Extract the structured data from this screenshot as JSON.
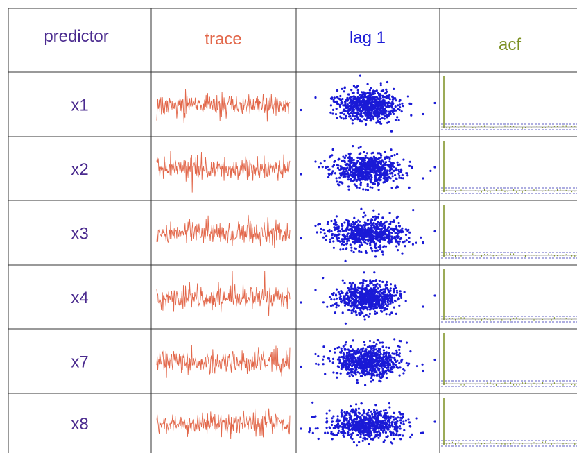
{
  "colors": {
    "predictor": "#4b2b8f",
    "trace": "#e2674a",
    "lag": "#1a1ad6",
    "acf": "#7a8f1f",
    "grid": "#333333",
    "ci": "#2a2ab0"
  },
  "headers": {
    "predictor": "predictor",
    "trace": "trace",
    "lag": "lag 1",
    "acf": "acf"
  },
  "rows": [
    {
      "label": "x1"
    },
    {
      "label": "x2"
    },
    {
      "label": "x3"
    },
    {
      "label": "x4"
    },
    {
      "label": "x7"
    },
    {
      "label": "x8"
    }
  ],
  "chart_data": {
    "type": "table",
    "columns": [
      "predictor",
      "trace",
      "lag 1",
      "acf"
    ],
    "rows": [
      "x1",
      "x2",
      "x3",
      "x4",
      "x7",
      "x8"
    ]
  }
}
